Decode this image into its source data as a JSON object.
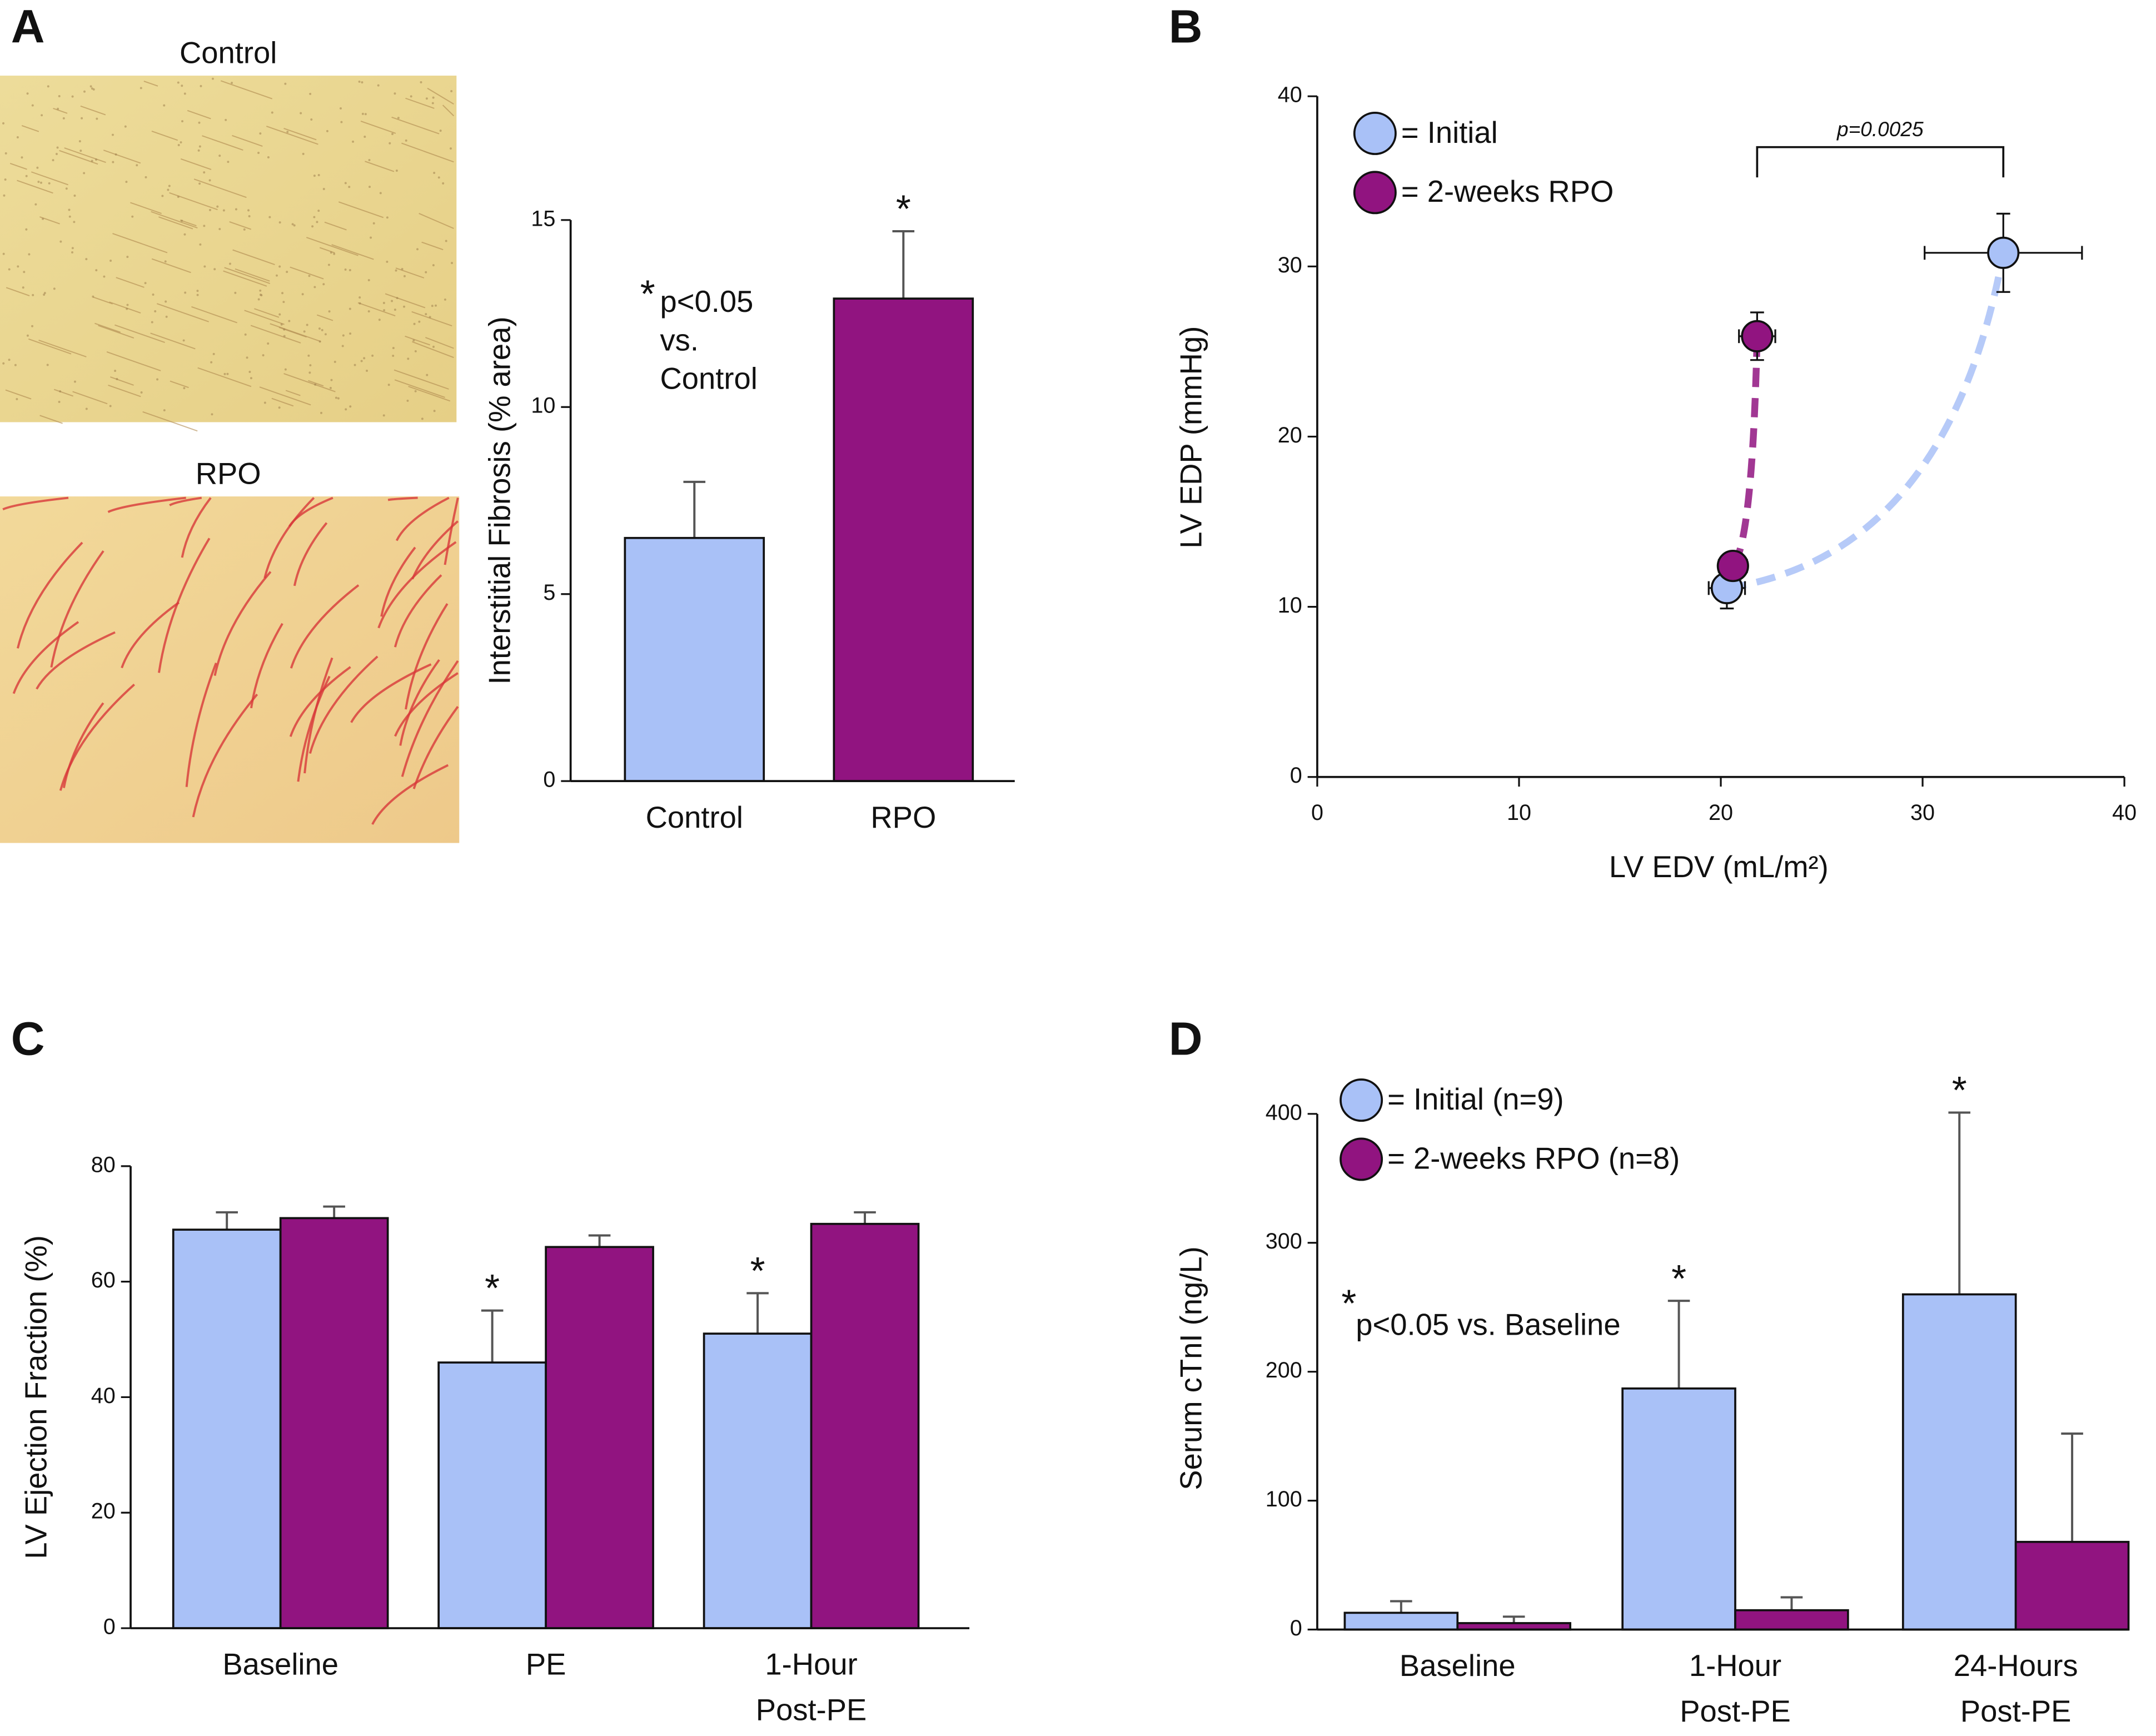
{
  "chart_data": [
    {
      "type": "bar",
      "label": "A",
      "images": [
        "Control",
        "RPO"
      ],
      "ylabel": "Interstitial Fibrosis (% area)",
      "categories": [
        [
          "Control"
        ],
        [
          "RPO"
        ]
      ],
      "values": [
        6.5,
        12.9
      ],
      "errors": [
        1.5,
        1.8
      ],
      "colors": [
        "#a9c1f7",
        "#911480"
      ],
      "markers": [
        null,
        "*"
      ],
      "note": {
        "symbol": "*",
        "lines": [
          "p<0.05",
          "vs.",
          "Control"
        ]
      },
      "ylim": [
        0,
        15
      ],
      "yticks": [
        0,
        5,
        10,
        15
      ]
    },
    {
      "type": "scatter",
      "label": "B",
      "xlabel": "LV EDV (mL/m²)",
      "ylabel": "LV EDP (mmHg)",
      "series": [
        {
          "name": "= Initial",
          "color": "#a9c1f7",
          "x": [
            20.3,
            34
          ],
          "values": [
            11.1,
            30.8
          ],
          "xerr": [
            0.9,
            3.9
          ],
          "yerr": [
            1.2,
            2.3
          ]
        },
        {
          "name": "= 2-weeks RPO",
          "color": "#911480",
          "x": [
            20.6,
            21.8
          ],
          "values": [
            12.4,
            25.9
          ],
          "xerr": [
            0.7,
            0.9
          ],
          "yerr": [
            0.8,
            1.4
          ]
        }
      ],
      "annotation": "p=0.0025",
      "xlim": [
        0,
        40
      ],
      "xticks": [
        0,
        10,
        20,
        30,
        40
      ],
      "ylim": [
        0,
        40
      ],
      "yticks": [
        0,
        10,
        20,
        30,
        40
      ]
    },
    {
      "type": "bar",
      "label": "C",
      "ylabel": "LV Ejection Fraction (%)",
      "categories": [
        [
          "Baseline"
        ],
        [
          "PE"
        ],
        [
          "1-Hour",
          "Post-PE"
        ]
      ],
      "series": [
        {
          "color": "#a9c1f7",
          "values": [
            69,
            46,
            51
          ],
          "errors": [
            3,
            9,
            7
          ],
          "markers": [
            null,
            "*",
            "*"
          ]
        },
        {
          "color": "#911480",
          "values": [
            71,
            66,
            70
          ],
          "errors": [
            2,
            2,
            2
          ]
        }
      ],
      "ylim": [
        0,
        80
      ],
      "yticks": [
        0,
        20,
        40,
        60,
        80
      ]
    },
    {
      "type": "bar",
      "label": "D",
      "ylabel": "Serum cTnI (ng/L)",
      "categories": [
        [
          "Baseline"
        ],
        [
          "1-Hour",
          "Post-PE"
        ],
        [
          "24-Hours",
          "Post-PE"
        ]
      ],
      "series": [
        {
          "name": "= Initial (n=9)",
          "color": "#a9c1f7",
          "values": [
            13,
            187,
            260
          ],
          "errors": [
            9,
            68,
            141
          ],
          "markers": [
            null,
            "*",
            "*"
          ]
        },
        {
          "name": "= 2-weeks RPO (n=8)",
          "color": "#911480",
          "values": [
            5,
            15,
            68
          ],
          "errors": [
            5,
            10,
            84
          ]
        }
      ],
      "note": {
        "symbol": "*",
        "lines": [
          "p<0.05 vs. Baseline"
        ]
      },
      "ylim": [
        0,
        400
      ],
      "yticks": [
        0,
        100,
        200,
        300,
        400
      ]
    }
  ]
}
